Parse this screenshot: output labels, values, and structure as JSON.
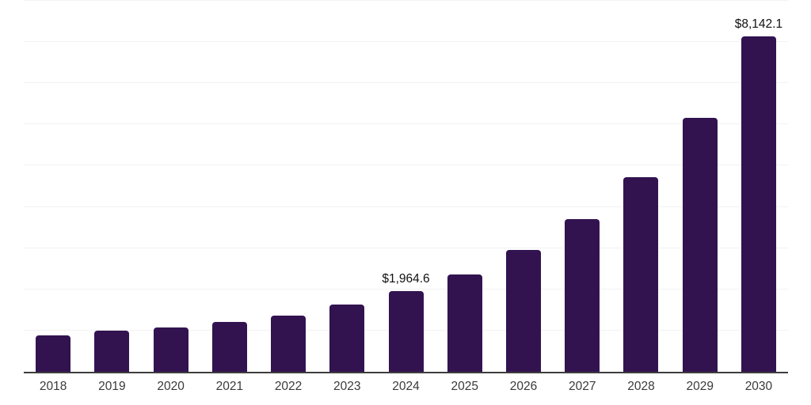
{
  "chart_data": {
    "type": "bar",
    "title": "",
    "xlabel": "",
    "ylabel": "",
    "categories": [
      "2018",
      "2019",
      "2020",
      "2021",
      "2022",
      "2023",
      "2024",
      "2025",
      "2026",
      "2027",
      "2028",
      "2029",
      "2030"
    ],
    "values": [
      875,
      990,
      1070,
      1205,
      1365,
      1630,
      1964.6,
      2365,
      2955,
      3710,
      4725,
      6160,
      8142.1
    ],
    "value_labels": [
      "",
      "",
      "",
      "",
      "",
      "",
      "$1,964.6",
      "",
      "",
      "",
      "",
      "",
      "$8,142.1"
    ],
    "ylim": [
      0,
      9000
    ],
    "gridline_step": 1000,
    "grid": true,
    "legend": false,
    "colors": {
      "bar": "#321350",
      "gridline": "#f2f2f2",
      "axis": "#3d3d3d",
      "tick_label": "#3a3a3a",
      "value_label": "#111111"
    }
  }
}
